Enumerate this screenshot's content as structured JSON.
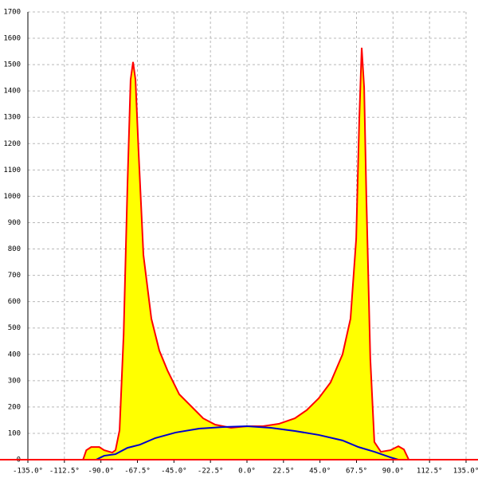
{
  "chart_data": {
    "type": "area",
    "grid": true,
    "xlim": [
      -135,
      135
    ],
    "ylim": [
      0,
      1700
    ],
    "xticks": [
      {
        "value": -135,
        "label": "-135.0°"
      },
      {
        "value": -112.5,
        "label": "-112.5°"
      },
      {
        "value": -90,
        "label": "-90.0°"
      },
      {
        "value": -67.5,
        "label": "-67.5°"
      },
      {
        "value": -45,
        "label": "-45.0°"
      },
      {
        "value": -22.5,
        "label": "-22.5°"
      },
      {
        "value": 0,
        "label": "0.0°"
      },
      {
        "value": 22.5,
        "label": "22.5°"
      },
      {
        "value": 45,
        "label": "45.0°"
      },
      {
        "value": 67.5,
        "label": "67.5°"
      },
      {
        "value": 90,
        "label": "90.0°"
      },
      {
        "value": 112.5,
        "label": "112.5°"
      },
      {
        "value": 135,
        "label": "135.0°"
      }
    ],
    "yticks": [
      0,
      100,
      200,
      300,
      400,
      500,
      600,
      700,
      800,
      900,
      1000,
      1100,
      1200,
      1300,
      1400,
      1500,
      1600,
      1700
    ],
    "series": [
      {
        "color": "#ff0000",
        "fill": "#ffff00",
        "x": [
          -101,
          -99,
          -96,
          -91,
          -88,
          -83,
          -81,
          -78.5,
          -76,
          -73.6,
          -71.7,
          -70.2,
          -68.7,
          -66.8,
          -63.8,
          -58.9,
          -54,
          -49,
          -41.7,
          -34.4,
          -27,
          -19.6,
          -9.8,
          0,
          9.8,
          19.6,
          29.5,
          36.8,
          44.2,
          51.5,
          58.9,
          63.8,
          67.3,
          69.2,
          70.7,
          72.2,
          73.6,
          76,
          78.5,
          82.5,
          88.4,
          93.3,
          96.7,
          99.7
        ],
        "values": [
          0,
          36,
          48,
          48,
          36,
          27,
          36,
          112,
          475,
          1050,
          1443,
          1510,
          1443,
          1170,
          777,
          535,
          414,
          339,
          248,
          203,
          157,
          133,
          121,
          127,
          127,
          136,
          157,
          188,
          233,
          293,
          400,
          535,
          838,
          1291,
          1564,
          1413,
          989,
          384,
          67,
          30,
          36,
          51,
          39,
          0
        ]
      },
      {
        "color": "#0000cc",
        "x": [
          -93,
          -88,
          -81,
          -73.6,
          -66,
          -56.5,
          -44,
          -29.5,
          -14.7,
          0,
          14.7,
          29.5,
          44.2,
          58.9,
          68.7,
          78.5,
          88.4,
          93.3
        ],
        "values": [
          0,
          15,
          21,
          45,
          57,
          82,
          103,
          118,
          124,
          127,
          121,
          109,
          94,
          73,
          48,
          30,
          9,
          0
        ]
      }
    ]
  }
}
